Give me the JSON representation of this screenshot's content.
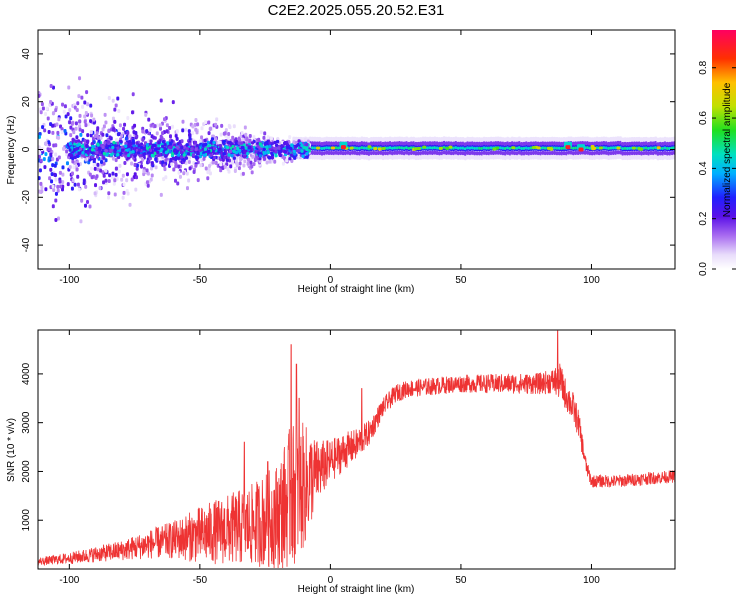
{
  "title": "C2E2.2025.055.20.52.E31",
  "chart_data": [
    {
      "type": "heatmap",
      "xlabel": "Height of straight line (km)",
      "ylabel": "Frequency (Hz)",
      "xlim": [
        -112,
        132
      ],
      "ylim": [
        -50,
        50
      ],
      "xticks": [
        -100,
        -50,
        0,
        50,
        100
      ],
      "yticks": [
        -40,
        -20,
        0,
        20,
        40
      ],
      "colorbar": {
        "label": "Normalized spectral amplitude",
        "range": [
          0,
          0.95
        ],
        "ticks": [
          0.0,
          0.2,
          0.4,
          0.6,
          0.8
        ],
        "colormap": [
          "#ffffff",
          "#e8dcfb",
          "#a86bf0",
          "#5a10e8",
          "#2020ff",
          "#00b0ff",
          "#00e0c0",
          "#20e020",
          "#c0e000",
          "#ffc000",
          "#ff3000",
          "#ff0060"
        ]
      },
      "features": [
        {
          "x_range": [
            -112,
            -85
          ],
          "freq_range": [
            -50,
            50
          ],
          "amplitude": 0.25
        },
        {
          "x_range": [
            -100,
            -10
          ],
          "freq_range": [
            -8,
            8
          ],
          "amplitude": 0.45
        },
        {
          "x_range": [
            -10,
            132
          ],
          "freq_range": [
            -2,
            3
          ],
          "amplitude": 0.7
        },
        {
          "x": 5,
          "freq": 1,
          "amplitude": 0.9
        },
        {
          "x": 91,
          "freq": 1,
          "amplitude": 0.9
        },
        {
          "x": 96,
          "freq": 0,
          "amplitude": 0.9
        }
      ]
    },
    {
      "type": "line",
      "xlabel": "Height of straight line (km)",
      "ylabel": "SNR (10 * v/v)",
      "xlim": [
        -112,
        132
      ],
      "ylim": [
        0,
        4900
      ],
      "xticks": [
        -100,
        -50,
        0,
        50,
        100
      ],
      "yticks": [
        1000,
        2000,
        3000,
        4000
      ],
      "color": "#ee3333",
      "series": [
        {
          "x": [
            -112,
            -100,
            -90,
            -80,
            -70,
            -60,
            -50,
            -40,
            -30,
            -20,
            -15,
            -10,
            -5,
            0,
            5,
            10,
            15,
            20,
            25,
            30,
            40,
            50,
            60,
            70,
            80,
            85,
            88,
            90,
            93,
            95,
            98,
            100,
            110,
            120,
            132
          ],
          "values": [
            150,
            220,
            300,
            380,
            500,
            600,
            700,
            800,
            900,
            1100,
            1500,
            1700,
            2000,
            2200,
            2400,
            2550,
            2800,
            3300,
            3600,
            3700,
            3750,
            3800,
            3800,
            3800,
            3800,
            3850,
            3850,
            3600,
            3300,
            3000,
            2100,
            1800,
            1800,
            1850,
            1900
          ],
          "spread": [
            120,
            180,
            250,
            320,
            450,
            600,
            900,
            1100,
            1300,
            1700,
            2300,
            2000,
            1000,
            700,
            600,
            500,
            400,
            300,
            280,
            280,
            280,
            280,
            300,
            320,
            340,
            400,
            600,
            500,
            500,
            450,
            250,
            200,
            200,
            200,
            200
          ],
          "peaks": [
            [
              -33,
              2600
            ],
            [
              -24,
              2200
            ],
            [
              -15,
              4600
            ],
            [
              -13,
              4200
            ],
            [
              -12,
              3500
            ],
            [
              12,
              3700
            ],
            [
              87,
              4880
            ]
          ]
        }
      ]
    }
  ]
}
